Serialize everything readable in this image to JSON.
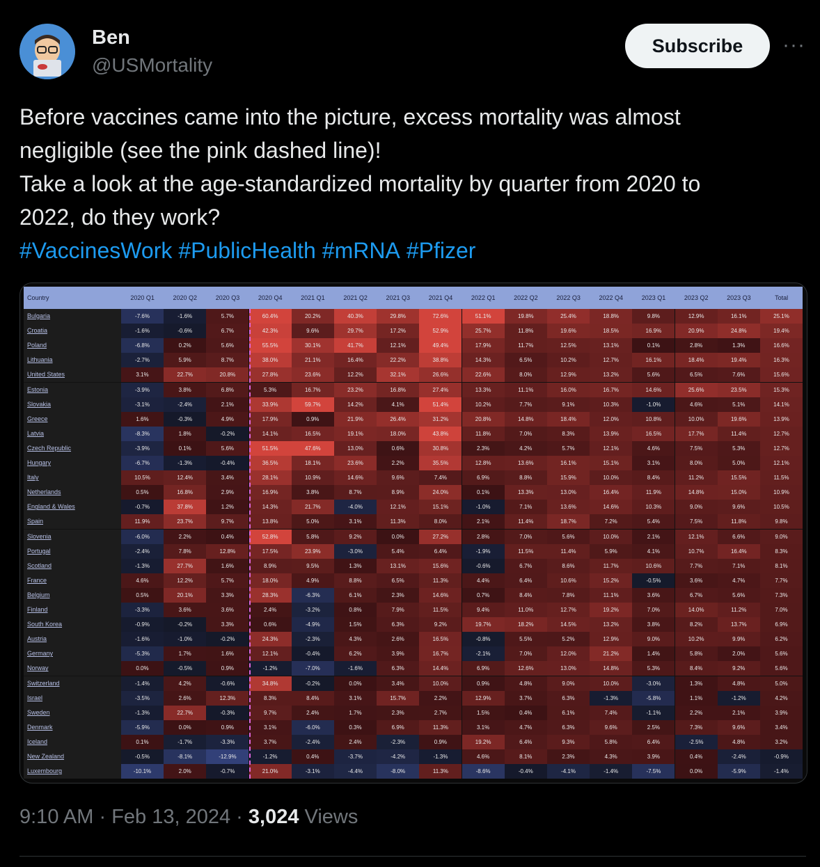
{
  "author": {
    "name": "Ben",
    "handle": "@USMortality"
  },
  "subscribe_label": "Subscribe",
  "more_label": "···",
  "tweet_lines": [
    "Before vaccines came into the picture, excess mortality was almost",
    "negligible (see the pink dashed line)!",
    "Take a look at the  age-standardized mortality by quarter from 2020 to",
    "2022, do they work?"
  ],
  "hashtags": [
    "#VaccinesWork",
    "#PublicHealth",
    "#mRNA",
    "#Pfizer"
  ],
  "meta": {
    "time": "9:10 AM",
    "date": "Feb 13, 2024",
    "views_count": "3,024",
    "views_label": "Views"
  },
  "colors": {
    "accent_link": "#1d9bf0",
    "header": "#8fa3d9",
    "dashed_line": "#e066e0"
  },
  "chart_data": {
    "type": "table",
    "columns": [
      "Country",
      "2020 Q1",
      "2020 Q2",
      "2020 Q3",
      "2020 Q4",
      "2021 Q1",
      "2021 Q2",
      "2021 Q3",
      "2021 Q4",
      "2022 Q1",
      "2022 Q2",
      "2022 Q3",
      "2022 Q4",
      "2023 Q1",
      "2023 Q2",
      "2023 Q3",
      "Total"
    ],
    "rows": [
      [
        "Bulgaria",
        "-7.6%",
        "-1.6%",
        "5.7%",
        "60.4%",
        "20.2%",
        "40.3%",
        "29.8%",
        "72.6%",
        "51.1%",
        "19.8%",
        "25.4%",
        "18.8%",
        "9.8%",
        "12.9%",
        "16.1%",
        "25.1%"
      ],
      [
        "Croatia",
        "-1.6%",
        "-0.6%",
        "6.7%",
        "42.3%",
        "9.6%",
        "29.7%",
        "17.2%",
        "52.9%",
        "25.7%",
        "11.8%",
        "19.6%",
        "18.5%",
        "16.9%",
        "20.9%",
        "24.8%",
        "19.4%"
      ],
      [
        "Poland",
        "-6.8%",
        "0.2%",
        "5.6%",
        "55.5%",
        "30.1%",
        "41.7%",
        "12.1%",
        "49.4%",
        "17.9%",
        "11.7%",
        "12.5%",
        "13.1%",
        "0.1%",
        "2.8%",
        "1.3%",
        "16.6%"
      ],
      [
        "Lithuania",
        "-2.7%",
        "5.9%",
        "8.7%",
        "38.0%",
        "21.1%",
        "16.4%",
        "22.2%",
        "38.8%",
        "14.3%",
        "6.5%",
        "10.2%",
        "12.7%",
        "16.1%",
        "18.4%",
        "19.4%",
        "16.3%"
      ],
      [
        "United States",
        "3.1%",
        "22.7%",
        "20.8%",
        "27.8%",
        "23.6%",
        "12.2%",
        "32.1%",
        "26.6%",
        "22.6%",
        "8.0%",
        "12.9%",
        "13.2%",
        "5.6%",
        "6.5%",
        "7.6%",
        "15.6%"
      ],
      [
        "Estonia",
        "-3.9%",
        "3.8%",
        "6.8%",
        "5.3%",
        "16.7%",
        "23.2%",
        "16.8%",
        "27.4%",
        "13.3%",
        "11.1%",
        "16.0%",
        "16.7%",
        "14.6%",
        "25.6%",
        "23.5%",
        "15.3%"
      ],
      [
        "Slovakia",
        "-3.1%",
        "-2.4%",
        "2.1%",
        "33.9%",
        "59.7%",
        "14.2%",
        "4.1%",
        "51.4%",
        "10.2%",
        "7.7%",
        "9.1%",
        "10.3%",
        "-1.0%",
        "4.6%",
        "5.1%",
        "14.1%"
      ],
      [
        "Greece",
        "1.6%",
        "-0.3%",
        "4.9%",
        "17.9%",
        "0.9%",
        "21.9%",
        "26.4%",
        "31.2%",
        "20.8%",
        "14.8%",
        "18.4%",
        "12.0%",
        "10.8%",
        "10.0%",
        "19.6%",
        "13.9%"
      ],
      [
        "Latvia",
        "-8.3%",
        "1.8%",
        "-0.2%",
        "14.1%",
        "16.5%",
        "19.1%",
        "18.0%",
        "43.8%",
        "11.8%",
        "7.0%",
        "8.3%",
        "13.9%",
        "16.5%",
        "17.7%",
        "11.4%",
        "12.7%"
      ],
      [
        "Czech Republic",
        "-3.9%",
        "0.1%",
        "5.6%",
        "51.5%",
        "47.6%",
        "13.0%",
        "0.6%",
        "30.8%",
        "2.3%",
        "4.2%",
        "5.7%",
        "12.1%",
        "4.6%",
        "7.5%",
        "5.3%",
        "12.7%"
      ],
      [
        "Hungary",
        "-6.7%",
        "-1.3%",
        "-0.4%",
        "36.5%",
        "18.1%",
        "23.6%",
        "2.2%",
        "35.5%",
        "12.8%",
        "13.6%",
        "16.1%",
        "15.1%",
        "3.1%",
        "8.0%",
        "5.0%",
        "12.1%"
      ],
      [
        "Italy",
        "10.5%",
        "12.4%",
        "3.4%",
        "28.1%",
        "10.9%",
        "14.6%",
        "9.6%",
        "7.4%",
        "6.9%",
        "8.8%",
        "15.9%",
        "10.0%",
        "8.4%",
        "11.2%",
        "15.5%",
        "11.5%"
      ],
      [
        "Netherlands",
        "0.5%",
        "16.8%",
        "2.9%",
        "16.9%",
        "3.8%",
        "8.7%",
        "8.9%",
        "24.0%",
        "0.1%",
        "13.3%",
        "13.0%",
        "16.4%",
        "11.9%",
        "14.8%",
        "15.0%",
        "10.9%"
      ],
      [
        "England & Wales",
        "-0.7%",
        "37.8%",
        "1.2%",
        "14.3%",
        "21.7%",
        "-4.0%",
        "12.1%",
        "15.1%",
        "-1.0%",
        "7.1%",
        "13.6%",
        "14.6%",
        "10.3%",
        "9.0%",
        "9.6%",
        "10.5%"
      ],
      [
        "Spain",
        "11.9%",
        "23.7%",
        "9.7%",
        "13.8%",
        "5.0%",
        "3.1%",
        "11.3%",
        "8.0%",
        "2.1%",
        "11.4%",
        "18.7%",
        "7.2%",
        "5.4%",
        "7.5%",
        "11.8%",
        "9.8%"
      ],
      [
        "Slovenia",
        "-6.0%",
        "2.2%",
        "0.4%",
        "52.8%",
        "5.8%",
        "9.2%",
        "0.0%",
        "27.2%",
        "2.8%",
        "7.0%",
        "5.6%",
        "10.0%",
        "2.1%",
        "12.1%",
        "6.6%",
        "9.0%"
      ],
      [
        "Portugal",
        "-2.4%",
        "7.8%",
        "12.8%",
        "17.5%",
        "23.9%",
        "-3.0%",
        "5.4%",
        "6.4%",
        "-1.9%",
        "11.5%",
        "11.4%",
        "5.9%",
        "4.1%",
        "10.7%",
        "16.4%",
        "8.3%"
      ],
      [
        "Scotland",
        "-1.3%",
        "27.7%",
        "1.6%",
        "8.9%",
        "9.5%",
        "1.3%",
        "13.1%",
        "15.6%",
        "-0.6%",
        "6.7%",
        "8.6%",
        "11.7%",
        "10.6%",
        "7.7%",
        "7.1%",
        "8.1%"
      ],
      [
        "France",
        "4.6%",
        "12.2%",
        "5.7%",
        "18.0%",
        "4.9%",
        "8.8%",
        "6.5%",
        "11.3%",
        "4.4%",
        "6.4%",
        "10.6%",
        "15.2%",
        "-0.5%",
        "3.6%",
        "4.7%",
        "7.7%"
      ],
      [
        "Belgium",
        "0.5%",
        "20.1%",
        "3.3%",
        "28.3%",
        "-6.3%",
        "6.1%",
        "2.3%",
        "14.6%",
        "0.7%",
        "8.4%",
        "7.8%",
        "11.1%",
        "3.6%",
        "6.7%",
        "5.6%",
        "7.3%"
      ],
      [
        "Finland",
        "-3.3%",
        "3.6%",
        "3.6%",
        "2.4%",
        "-3.2%",
        "0.8%",
        "7.9%",
        "11.5%",
        "9.4%",
        "11.0%",
        "12.7%",
        "19.2%",
        "7.0%",
        "14.0%",
        "11.2%",
        "7.0%"
      ],
      [
        "South Korea",
        "-0.9%",
        "-0.2%",
        "3.3%",
        "0.6%",
        "-4.9%",
        "1.5%",
        "6.3%",
        "9.2%",
        "19.7%",
        "18.2%",
        "14.5%",
        "13.2%",
        "3.8%",
        "8.2%",
        "13.7%",
        "6.9%"
      ],
      [
        "Austria",
        "-1.6%",
        "-1.0%",
        "-0.2%",
        "24.3%",
        "-2.3%",
        "4.3%",
        "2.6%",
        "16.5%",
        "-0.8%",
        "5.5%",
        "5.2%",
        "12.9%",
        "9.0%",
        "10.2%",
        "9.9%",
        "6.2%"
      ],
      [
        "Germany",
        "-5.3%",
        "1.7%",
        "1.6%",
        "12.1%",
        "-0.4%",
        "6.2%",
        "3.9%",
        "16.7%",
        "-2.1%",
        "7.0%",
        "12.0%",
        "21.2%",
        "1.4%",
        "5.8%",
        "2.0%",
        "5.6%"
      ],
      [
        "Norway",
        "0.0%",
        "-0.5%",
        "0.9%",
        "-1.2%",
        "-7.0%",
        "-1.6%",
        "6.3%",
        "14.4%",
        "6.9%",
        "12.6%",
        "13.0%",
        "14.8%",
        "5.3%",
        "8.4%",
        "9.2%",
        "5.6%"
      ],
      [
        "Switzerland",
        "-1.4%",
        "4.2%",
        "-0.6%",
        "34.8%",
        "-0.2%",
        "0.0%",
        "3.4%",
        "10.0%",
        "0.9%",
        "4.8%",
        "9.0%",
        "10.0%",
        "-3.0%",
        "1.3%",
        "4.8%",
        "5.0%"
      ],
      [
        "Israel",
        "-3.5%",
        "2.6%",
        "12.3%",
        "8.3%",
        "8.4%",
        "3.1%",
        "15.7%",
        "2.2%",
        "12.9%",
        "3.7%",
        "6.3%",
        "-1.3%",
        "-5.8%",
        "1.1%",
        "-1.2%",
        "4.2%"
      ],
      [
        "Sweden",
        "-1.3%",
        "22.7%",
        "-0.3%",
        "9.7%",
        "2.4%",
        "1.7%",
        "2.3%",
        "2.7%",
        "1.5%",
        "0.4%",
        "6.1%",
        "7.4%",
        "-1.1%",
        "2.2%",
        "2.1%",
        "3.9%"
      ],
      [
        "Denmark",
        "-5.9%",
        "0.0%",
        "0.9%",
        "3.1%",
        "-6.0%",
        "0.3%",
        "6.9%",
        "11.3%",
        "3.1%",
        "4.7%",
        "6.3%",
        "9.6%",
        "2.5%",
        "7.3%",
        "9.6%",
        "3.4%"
      ],
      [
        "Iceland",
        "0.1%",
        "-1.7%",
        "-3.3%",
        "3.7%",
        "-2.4%",
        "2.4%",
        "-2.3%",
        "0.9%",
        "19.2%",
        "6.4%",
        "9.3%",
        "5.8%",
        "6.4%",
        "-2.5%",
        "4.8%",
        "3.2%"
      ],
      [
        "New Zealand",
        "-0.5%",
        "-8.1%",
        "-12.9%",
        "-1.2%",
        "0.4%",
        "-3.7%",
        "-4.2%",
        "-1.3%",
        "4.6%",
        "8.1%",
        "2.3%",
        "4.3%",
        "3.9%",
        "0.4%",
        "-2.4%",
        "-0.9%"
      ],
      [
        "Luxembourg",
        "-10.1%",
        "2.0%",
        "-0.7%",
        "21.0%",
        "-3.1%",
        "-4.4%",
        "-8.0%",
        "11.3%",
        "-8.6%",
        "-0.4%",
        "-4.1%",
        "-1.4%",
        "-7.5%",
        "0.0%",
        "-5.9%",
        "-1.4%"
      ]
    ],
    "color_scale": {
      "negative": "#2a3a6b",
      "zero": "#141828",
      "positive": "#c8443a"
    },
    "divider": "dashed line between 2020 Q3 and 2020 Q4"
  }
}
